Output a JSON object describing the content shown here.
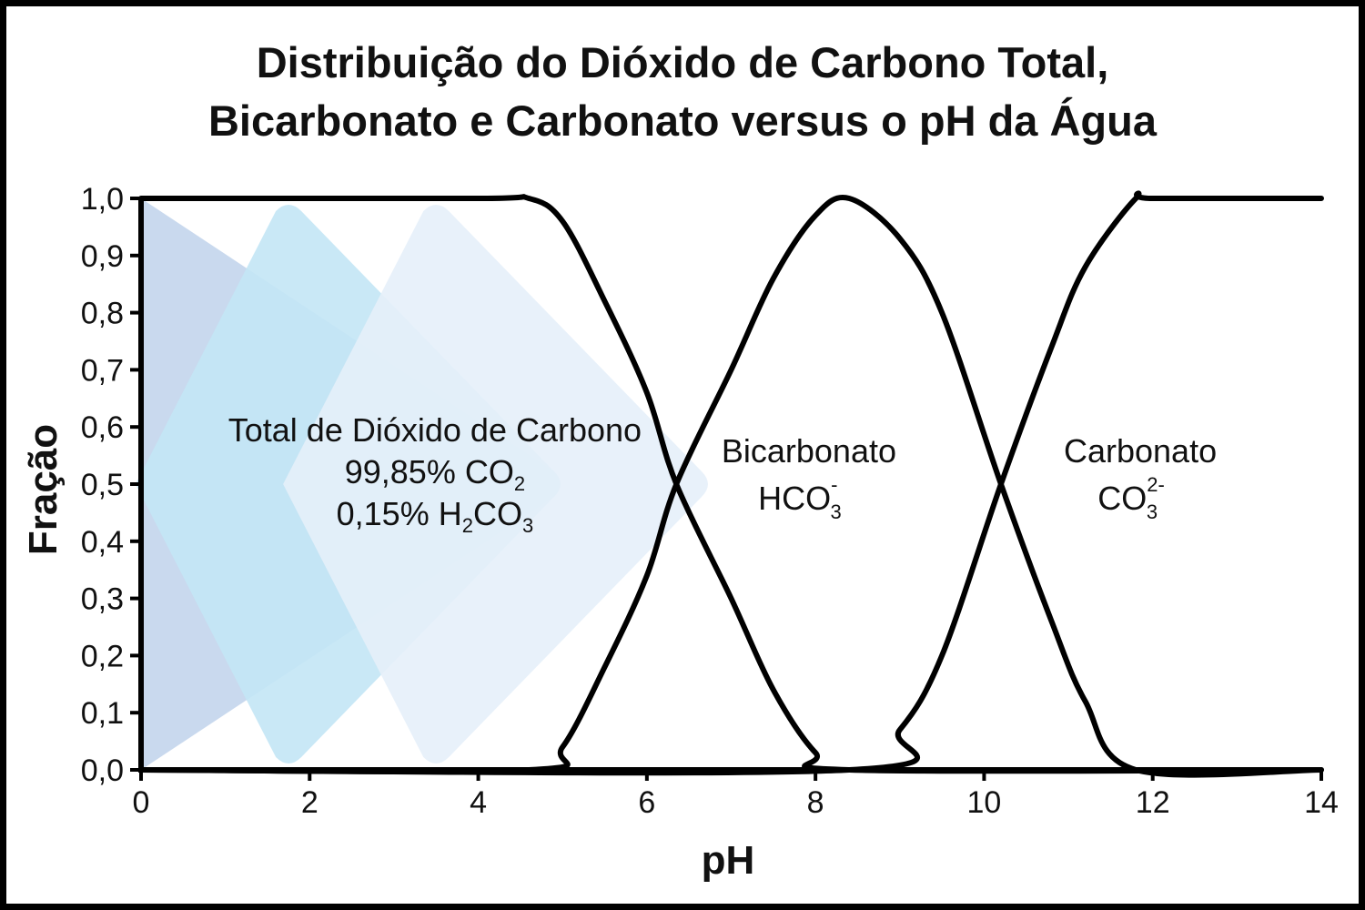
{
  "chart_data": {
    "type": "line",
    "title": [
      "Distribuição do Dióxido de Carbono Total,",
      "Bicarbonato e Carbonato versus o pH da Água"
    ],
    "xlabel": "pH",
    "ylabel": "Fração",
    "xlim": [
      0,
      14
    ],
    "ylim": [
      0,
      1
    ],
    "x_ticks": [
      0,
      2,
      4,
      6,
      8,
      10,
      12,
      14
    ],
    "x_tick_labels": [
      "0",
      "2",
      "4",
      "6",
      "8",
      "10",
      "12",
      "14"
    ],
    "y_ticks": [
      0,
      0.1,
      0.2,
      0.3,
      0.4,
      0.5,
      0.6,
      0.7,
      0.8,
      0.9,
      1.0
    ],
    "y_tick_labels": [
      "0,0",
      "0,1",
      "0,2",
      "0,3",
      "0,4",
      "0,5",
      "0,6",
      "0,7",
      "0,8",
      "0,9",
      "1,0"
    ],
    "grid": false,
    "legend": "none",
    "pK1": 6.35,
    "pK2": 10.2,
    "series": [
      {
        "species": "CO2",
        "line_color": "#000000",
        "x": [
          0,
          4,
          4.6,
          5.0,
          5.5,
          6.0,
          6.35,
          7.0,
          7.5,
          8.0,
          8.4,
          14
        ],
        "y": [
          1.0,
          1.0,
          1.0,
          0.96,
          0.82,
          0.66,
          0.5,
          0.3,
          0.14,
          0.03,
          0.0,
          0.0
        ]
      },
      {
        "species": "HCO3-",
        "line_color": "#000000",
        "x": [
          0,
          4.6,
          5.0,
          5.5,
          6.0,
          6.35,
          7.0,
          7.5,
          8.0,
          8.4,
          9.0,
          9.5,
          10.2,
          10.8,
          11.2,
          11.8,
          14
        ],
        "y": [
          0.0,
          0.0,
          0.04,
          0.18,
          0.34,
          0.5,
          0.7,
          0.86,
          0.97,
          1.0,
          0.93,
          0.8,
          0.5,
          0.26,
          0.12,
          0.0,
          0.0
        ]
      },
      {
        "species": "CO3 2-",
        "line_color": "#000000",
        "x": [
          0,
          8.4,
          9.0,
          9.5,
          10.2,
          10.8,
          11.2,
          11.8,
          12.0,
          14
        ],
        "y": [
          0.0,
          0.0,
          0.07,
          0.2,
          0.5,
          0.74,
          0.88,
          1.0,
          1.0,
          1.0
        ]
      }
    ],
    "annotations": [
      {
        "x": 3.0,
        "y": 0.6,
        "lines": [
          {
            "text": "Total de Dióxido de Carbono",
            "sub": ""
          },
          {
            "text": "99,85% CO",
            "sub": "2"
          },
          {
            "text": "0,15% H",
            "sub": "2",
            "text2": "CO",
            "sub2": "3"
          }
        ]
      },
      {
        "x": 8.3,
        "y": 0.56,
        "label": "Bicarbonato",
        "formula": "HCO",
        "sub": "3",
        "sup": "-"
      },
      {
        "x": 12.5,
        "y": 0.56,
        "label": "Carbonato",
        "formula": "CO",
        "sub": "3",
        "sup": "2-"
      }
    ],
    "decor_chevrons": [
      {
        "tip_x": 5.05,
        "base_x": 0.0,
        "color": "#c3d5ec"
      },
      {
        "tip_x": 5.05,
        "base_x": 1.75,
        "color": "#c3e5f5"
      },
      {
        "tip_x": 6.8,
        "base_x": 3.5,
        "color": "#e5f0fa"
      }
    ]
  }
}
